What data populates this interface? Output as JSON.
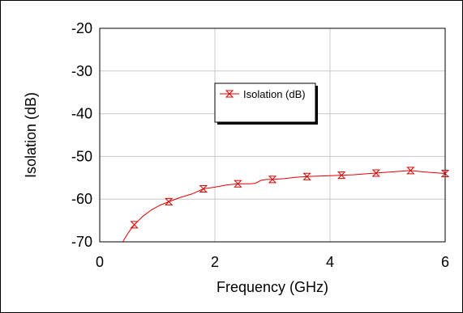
{
  "chart_data": {
    "type": "line",
    "xlabel": "Frequency (GHz)",
    "ylabel": "Isolation (dB)",
    "xlim": [
      0,
      6
    ],
    "ylim": [
      -70,
      -20
    ],
    "xticks": [
      "0",
      "2",
      "4",
      "6"
    ],
    "yticks": [
      "-20",
      "-30",
      "-40",
      "-50",
      "-60",
      "-70"
    ],
    "grid": true,
    "legend_position": "center",
    "series": [
      {
        "name": "Isolation (dB)",
        "color": "#dd0000",
        "marker": "hourglass",
        "x": [
          0.4,
          0.5,
          0.6,
          0.75,
          0.9,
          1.05,
          1.2,
          1.4,
          1.6,
          1.8,
          2.0,
          2.2,
          2.4,
          2.6,
          2.7,
          2.8,
          2.9,
          3.0,
          3.2,
          3.4,
          3.6,
          3.8,
          4.0,
          4.2,
          4.4,
          4.6,
          4.8,
          5.0,
          5.2,
          5.4,
          5.6,
          5.8,
          6.0
        ],
        "y": [
          -70.0,
          -67.8,
          -66.0,
          -64.0,
          -62.5,
          -61.4,
          -60.6,
          -59.6,
          -58.8,
          -57.6,
          -57.2,
          -56.7,
          -56.4,
          -56.4,
          -56.3,
          -55.6,
          -55.4,
          -55.4,
          -55.2,
          -54.9,
          -54.7,
          -54.6,
          -54.5,
          -54.4,
          -54.3,
          -54.1,
          -53.9,
          -53.7,
          -53.5,
          -53.3,
          -53.6,
          -53.8,
          -54.0
        ],
        "marker_x": [
          0.6,
          1.2,
          1.8,
          2.4,
          3.0,
          3.6,
          4.2,
          4.8,
          5.4,
          6.0
        ],
        "marker_y": [
          -66.0,
          -60.6,
          -57.6,
          -56.4,
          -55.4,
          -54.7,
          -54.4,
          -53.9,
          -53.3,
          -54.0
        ]
      }
    ]
  }
}
